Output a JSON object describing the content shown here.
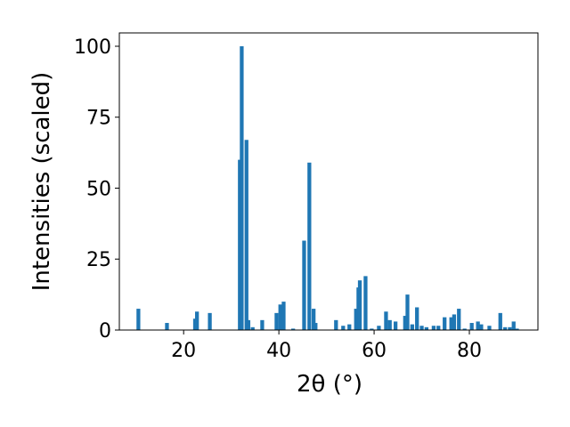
{
  "chart_data": {
    "type": "bar",
    "xlabel": "2θ (°)",
    "ylabel": "Intensities (scaled)",
    "x": [
      10.5,
      16.5,
      22.4,
      22.8,
      25.5,
      31.8,
      32.2,
      33.2,
      33.6,
      34.5,
      36.5,
      39.5,
      40.3,
      41.0,
      43.0,
      45.3,
      46.4,
      47.3,
      47.7,
      52.0,
      53.5,
      54.8,
      56.2,
      56.7,
      57.0,
      58.2,
      59.5,
      61.0,
      62.5,
      63.3,
      64.5,
      66.5,
      67.0,
      68.0,
      69.0,
      70.0,
      71.0,
      72.5,
      73.5,
      74.8,
      76.2,
      76.8,
      77.8,
      79.0,
      80.5,
      81.8,
      82.5,
      84.2,
      86.5,
      87.5,
      88.5,
      89.3,
      90.0
    ],
    "values": [
      7.5,
      2.5,
      4,
      6.5,
      6,
      60,
      100,
      67,
      3.5,
      1,
      3.5,
      6,
      9,
      10,
      0.5,
      31.5,
      59,
      7.5,
      2.5,
      3.5,
      1.5,
      2,
      7.5,
      15,
      17.5,
      19,
      0.5,
      1.5,
      6.5,
      3.5,
      3,
      5,
      12.5,
      2,
      8,
      1.5,
      1,
      1.5,
      1.5,
      4.5,
      4.5,
      5.5,
      7.5,
      0.5,
      2.5,
      3,
      2,
      1.5,
      6,
      1,
      1,
      3,
      0.5
    ],
    "color": "#1f77b4",
    "xlim": [
      6.5,
      94.4
    ],
    "xticks": [
      20,
      40,
      60,
      80
    ],
    "ylim": [
      0,
      104.7
    ],
    "yticks": [
      0,
      25,
      50,
      75,
      100
    ]
  }
}
